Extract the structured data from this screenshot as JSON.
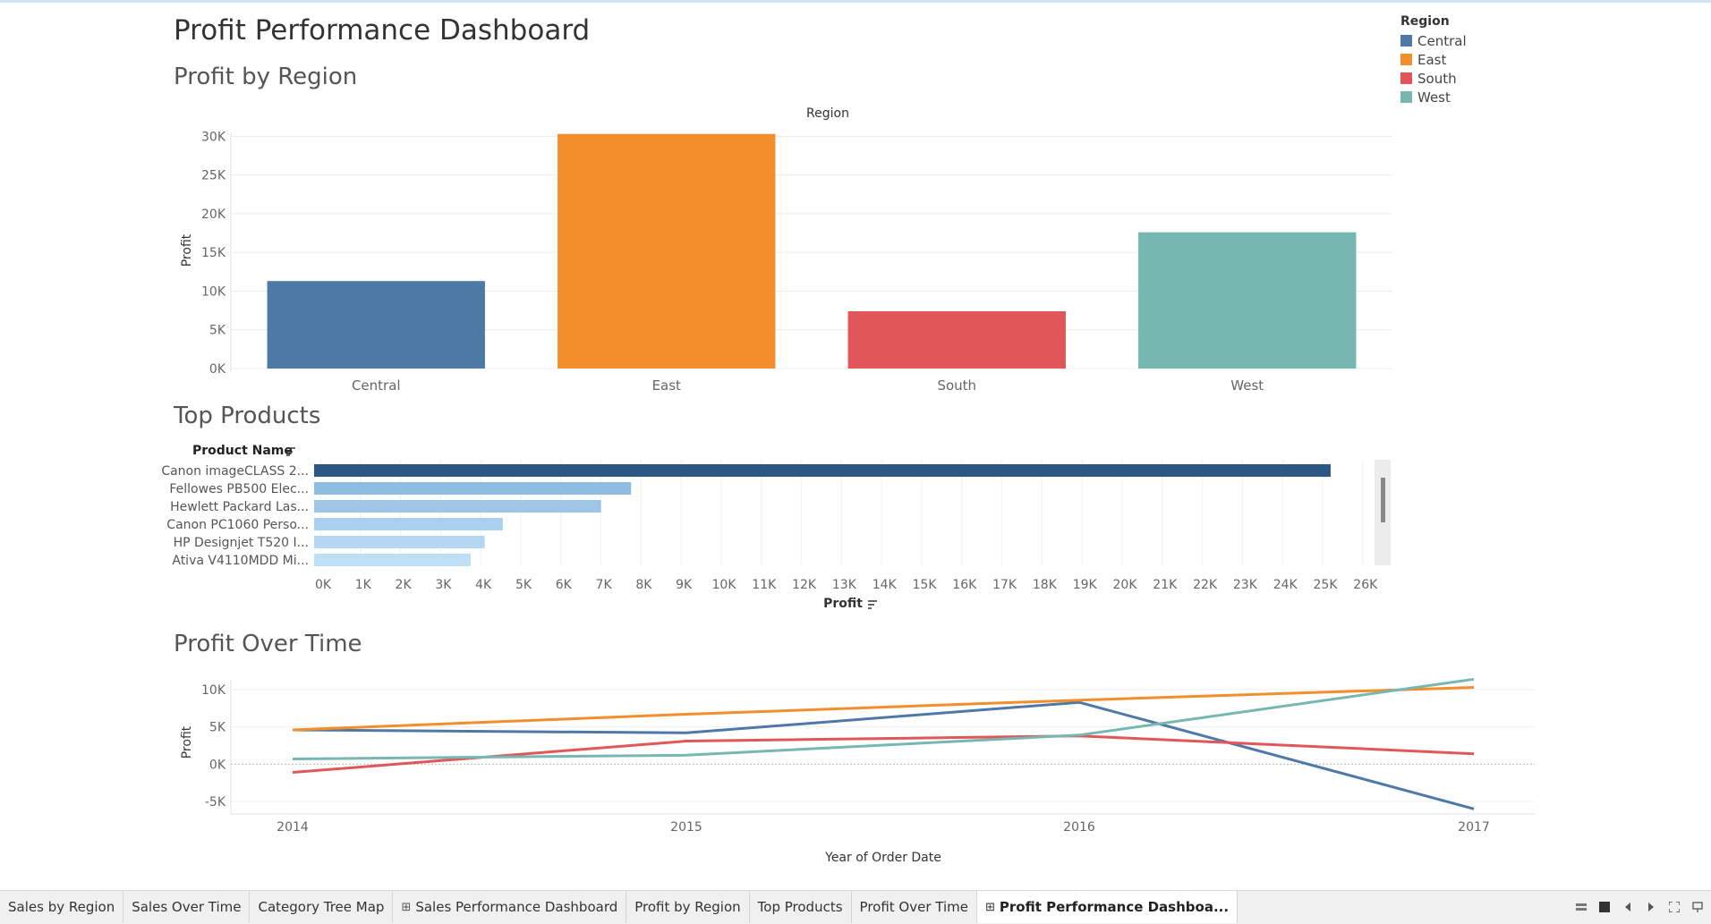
{
  "dashboard": {
    "title": "Profit Performance Dashboard"
  },
  "legend": {
    "title": "Region",
    "items": [
      {
        "label": "Central",
        "color": "#4e79a7"
      },
      {
        "label": "East",
        "color": "#f28e2b"
      },
      {
        "label": "South",
        "color": "#e15759"
      },
      {
        "label": "West",
        "color": "#76b7b2"
      }
    ]
  },
  "sections": {
    "profit_by_region": "Profit by Region",
    "top_products": "Top Products",
    "profit_over_time": "Profit Over Time"
  },
  "chart_data": [
    {
      "type": "bar",
      "title": "Profit by Region",
      "column_header": "Region",
      "ylabel": "Profit",
      "categories": [
        "Central",
        "East",
        "South",
        "West"
      ],
      "values": [
        11300,
        30300,
        7400,
        17600
      ],
      "colors": [
        "#4e79a7",
        "#f28e2b",
        "#e15759",
        "#76b7b2"
      ],
      "ylim": [
        0,
        30000
      ],
      "yticks": [
        0,
        5000,
        10000,
        15000,
        20000,
        25000,
        30000
      ],
      "ytick_labels": [
        "0K",
        "5K",
        "10K",
        "15K",
        "20K",
        "25K",
        "30K"
      ],
      "grid": true
    },
    {
      "type": "bar",
      "orientation": "horizontal",
      "title": "Top Products",
      "row_header": "Product Name",
      "xlabel": "Profit",
      "categories": [
        "Canon imageCLASS 2...",
        "Fellowes PB500 Elec...",
        "Hewlett Packard Las...",
        "Canon PC1060 Perso...",
        "HP Designjet T520 I...",
        "Ativa V4110MDD Mi..."
      ],
      "values": [
        25200,
        7750,
        7000,
        4550,
        4100,
        3750
      ],
      "colors": [
        "#2a5783",
        "#8fbde1",
        "#9cc5e6",
        "#a9d0ee",
        "#b4d8f2",
        "#bfdff5"
      ],
      "xlim": [
        0,
        26500
      ],
      "xtick_labels": [
        "0K",
        "1K",
        "2K",
        "3K",
        "4K",
        "5K",
        "6K",
        "7K",
        "8K",
        "9K",
        "10K",
        "11K",
        "12K",
        "13K",
        "14K",
        "15K",
        "16K",
        "17K",
        "18K",
        "19K",
        "20K",
        "21K",
        "22K",
        "23K",
        "24K",
        "25K",
        "26K"
      ],
      "grid": true
    },
    {
      "type": "line",
      "title": "Profit Over Time",
      "xlabel": "Year of Order Date",
      "ylabel": "Profit",
      "x": [
        "2014",
        "2015",
        "2016",
        "2017"
      ],
      "series": [
        {
          "name": "Central",
          "color": "#4e79a7",
          "values": [
            4600,
            4200,
            8300,
            -6000
          ]
        },
        {
          "name": "East",
          "color": "#f28e2b",
          "values": [
            4600,
            6700,
            8600,
            10300
          ]
        },
        {
          "name": "South",
          "color": "#e15759",
          "values": [
            -1100,
            3100,
            3800,
            1400
          ]
        },
        {
          "name": "West",
          "color": "#76b7b2",
          "values": [
            700,
            1200,
            3900,
            11400
          ]
        }
      ],
      "ylim": [
        -6000,
        12000
      ],
      "yticks": [
        -5000,
        0,
        5000,
        10000
      ],
      "ytick_labels": [
        "-5K",
        "0K",
        "5K",
        "10K"
      ],
      "grid": true
    }
  ],
  "tabs": [
    {
      "label": "Sales by Region",
      "icon": ""
    },
    {
      "label": "Sales Over Time",
      "icon": ""
    },
    {
      "label": "Category Tree Map",
      "icon": ""
    },
    {
      "label": "Sales Performance Dashboard",
      "icon": "⊞"
    },
    {
      "label": "Profit by Region",
      "icon": ""
    },
    {
      "label": "Top Products",
      "icon": ""
    },
    {
      "label": "Profit Over Time",
      "icon": ""
    },
    {
      "label": "Profit Performance Dashboa...",
      "icon": "⊞",
      "active": true
    }
  ]
}
